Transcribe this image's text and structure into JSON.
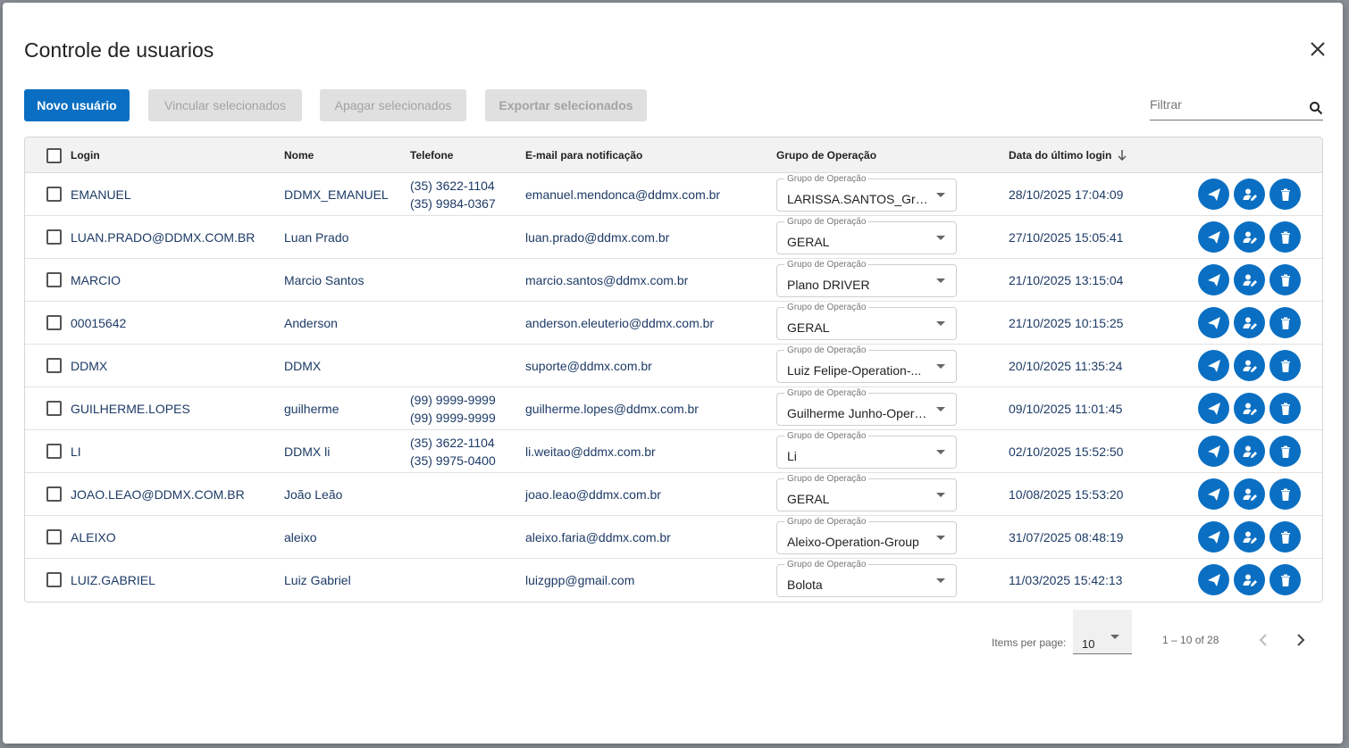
{
  "dialog": {
    "title": "Controle de usuarios",
    "close_icon": "close-icon"
  },
  "toolbar": {
    "new_user": "Novo usuário",
    "link_selected": "Vincular selecionados",
    "delete_selected": "Apagar selecionados",
    "export_selected": "Exportar selecionados",
    "filter_placeholder": "Filtrar"
  },
  "colors": {
    "primary": "#0a6fc2",
    "disabled_bg": "#e0e0e0",
    "link_text": "#1d3a66"
  },
  "table": {
    "headers": {
      "login": "Login",
      "nome": "Nome",
      "telefone": "Telefone",
      "email": "E-mail para notificação",
      "grupo": "Grupo de Operação",
      "data": "Data do último login"
    },
    "grupo_field_label": "Grupo de Operação",
    "rows": [
      {
        "login": "EMANUEL",
        "nome": "DDMX_EMANUEL",
        "tel1": "(35) 3622-1104",
        "tel2": "(35) 9984-0367",
        "email": "emanuel.mendonca@ddmx.com.br",
        "grupo": "LARISSA.SANTOS_Grup...",
        "data": "28/10/2025 17:04:09"
      },
      {
        "login": "LUAN.PRADO@DDMX.COM.BR",
        "nome": "Luan Prado",
        "tel1": "",
        "tel2": "",
        "email": "luan.prado@ddmx.com.br",
        "grupo": "GERAL",
        "data": "27/10/2025 15:05:41"
      },
      {
        "login": "MARCIO",
        "nome": "Marcio Santos",
        "tel1": "",
        "tel2": "",
        "email": "marcio.santos@ddmx.com.br",
        "grupo": "Plano DRIVER",
        "data": "21/10/2025 13:15:04"
      },
      {
        "login": "00015642",
        "nome": "Anderson",
        "tel1": "",
        "tel2": "",
        "email": "anderson.eleuterio@ddmx.com.br",
        "grupo": "GERAL",
        "data": "21/10/2025 10:15:25"
      },
      {
        "login": "DDMX",
        "nome": "DDMX",
        "tel1": "",
        "tel2": "",
        "email": "suporte@ddmx.com.br",
        "grupo": "Luiz Felipe-Operation-...",
        "data": "20/10/2025 11:35:24"
      },
      {
        "login": "GUILHERME.LOPES",
        "nome": "guilherme",
        "tel1": "(99) 9999-9999",
        "tel2": "(99) 9999-9999",
        "email": "guilherme.lopes@ddmx.com.br",
        "grupo": "Guilherme Junho-Opera...",
        "data": "09/10/2025 11:01:45"
      },
      {
        "login": "LI",
        "nome": "DDMX li",
        "tel1": "(35) 3622-1104",
        "tel2": "(35) 9975-0400",
        "email": "li.weitao@ddmx.com.br",
        "grupo": "Li",
        "data": "02/10/2025 15:52:50"
      },
      {
        "login": "JOAO.LEAO@DDMX.COM.BR",
        "nome": "João Leão",
        "tel1": "",
        "tel2": "",
        "email": "joao.leao@ddmx.com.br",
        "grupo": "GERAL",
        "data": "10/08/2025 15:53:20"
      },
      {
        "login": "ALEIXO",
        "nome": "aleixo",
        "tel1": "",
        "tel2": "",
        "email": "aleixo.faria@ddmx.com.br",
        "grupo": "Aleixo-Operation-Group",
        "data": "31/07/2025 08:48:19"
      },
      {
        "login": "LUIZ.GABRIEL",
        "nome": "Luiz Gabriel",
        "tel1": "",
        "tel2": "",
        "email": "luizgpp@gmail.com",
        "grupo": "Bolota",
        "data": "11/03/2025 15:42:13"
      }
    ]
  },
  "pagination": {
    "items_per_page_label": "Items per page:",
    "items_per_page_value": "10",
    "range": "1 – 10 of 28"
  }
}
